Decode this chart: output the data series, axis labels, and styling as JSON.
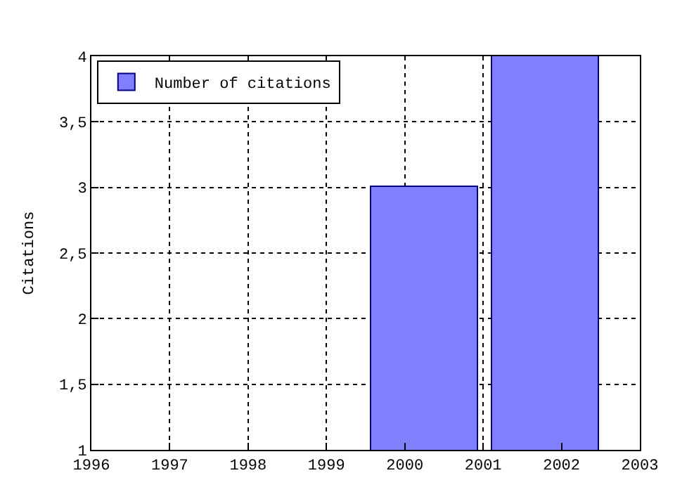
{
  "chart_data": {
    "type": "bar",
    "ylabel": "Citations",
    "x": [
      2000.25,
      2001.8
    ],
    "series": [
      {
        "name": "Number of citations",
        "color": "#8080ff",
        "values": [
          3,
          4
        ]
      }
    ],
    "xlim": [
      1996,
      2003
    ],
    "xticks": [
      1996,
      1997,
      1998,
      1999,
      2000,
      2001,
      2002,
      2003
    ],
    "ylim": [
      1,
      4
    ],
    "yticks": [
      1,
      {
        "value": 1.5,
        "label": "1,5"
      },
      2,
      {
        "value": 2.5,
        "label": "2,5"
      },
      3,
      {
        "value": 3.5,
        "label": "3,5"
      },
      4
    ],
    "grid": true,
    "legend": "top left"
  }
}
